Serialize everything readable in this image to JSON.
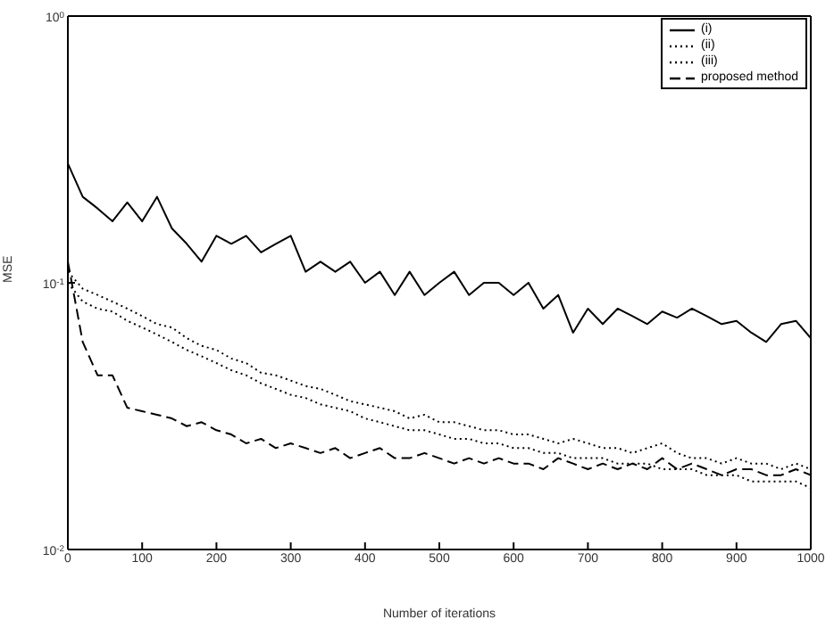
{
  "chart_data": {
    "type": "line",
    "xlabel": "Number of iterations",
    "ylabel": "MSE",
    "log": "y",
    "grid": false,
    "legend": "top right",
    "marker": "none",
    "xlim": [
      0,
      1000
    ],
    "xticks": [
      0,
      100,
      200,
      300,
      400,
      500,
      600,
      700,
      800,
      900,
      1000
    ],
    "ylim": [
      0.01,
      1
    ],
    "yticks": [
      {
        "value": 0.01,
        "label": "10$^{-2}$"
      },
      {
        "value": 0.1,
        "label": "10$^{-1}$"
      },
      {
        "value": 1,
        "label": "10$^{0}$"
      }
    ],
    "x": [
      0,
      20,
      40,
      60,
      80,
      100,
      120,
      140,
      160,
      180,
      200,
      220,
      240,
      260,
      280,
      300,
      320,
      340,
      360,
      380,
      400,
      420,
      440,
      460,
      480,
      500,
      520,
      540,
      560,
      580,
      600,
      620,
      640,
      660,
      680,
      700,
      720,
      740,
      760,
      780,
      800,
      820,
      840,
      860,
      880,
      900,
      920,
      940,
      960,
      980,
      1000
    ],
    "series": [
      {
        "name": "(i)",
        "color": "#000000",
        "line_style": "solid",
        "values": [
          0.28,
          0.21,
          0.19,
          0.17,
          0.2,
          0.17,
          0.21,
          0.16,
          0.14,
          0.12,
          0.15,
          0.14,
          0.15,
          0.13,
          0.14,
          0.15,
          0.11,
          0.12,
          0.11,
          0.12,
          0.1,
          0.11,
          0.09,
          0.11,
          0.09,
          0.1,
          0.11,
          0.09,
          0.1,
          0.1,
          0.09,
          0.1,
          0.08,
          0.09,
          0.065,
          0.08,
          0.07,
          0.08,
          0.075,
          0.07,
          0.078,
          0.074,
          0.08,
          0.075,
          0.07,
          0.072,
          0.065,
          0.06,
          0.07,
          0.072,
          0.062
        ]
      },
      {
        "name": "(ii)",
        "color": "#000000",
        "line_style": "dotted",
        "values": [
          0.11,
          0.095,
          0.09,
          0.085,
          0.08,
          0.075,
          0.07,
          0.068,
          0.062,
          0.058,
          0.056,
          0.052,
          0.05,
          0.046,
          0.045,
          0.043,
          0.041,
          0.04,
          0.038,
          0.036,
          0.035,
          0.034,
          0.033,
          0.031,
          0.032,
          0.03,
          0.03,
          0.029,
          0.028,
          0.028,
          0.027,
          0.027,
          0.026,
          0.025,
          0.026,
          0.025,
          0.024,
          0.024,
          0.023,
          0.024,
          0.025,
          0.023,
          0.022,
          0.022,
          0.021,
          0.022,
          0.021,
          0.021,
          0.02,
          0.021,
          0.02
        ]
      },
      {
        "name": "(iii)",
        "color": "#000000",
        "line_style": "dotted",
        "values": [
          0.1,
          0.085,
          0.08,
          0.078,
          0.072,
          0.068,
          0.064,
          0.06,
          0.056,
          0.053,
          0.05,
          0.047,
          0.045,
          0.042,
          0.04,
          0.038,
          0.037,
          0.035,
          0.034,
          0.033,
          0.031,
          0.03,
          0.029,
          0.028,
          0.028,
          0.027,
          0.026,
          0.026,
          0.025,
          0.025,
          0.024,
          0.024,
          0.023,
          0.023,
          0.022,
          0.022,
          0.022,
          0.021,
          0.021,
          0.021,
          0.02,
          0.02,
          0.02,
          0.019,
          0.019,
          0.019,
          0.018,
          0.018,
          0.018,
          0.018,
          0.017
        ]
      },
      {
        "name": "proposed method",
        "color": "#000000",
        "line_style": "dashed",
        "values": [
          0.12,
          0.06,
          0.045,
          0.045,
          0.034,
          0.033,
          0.032,
          0.031,
          0.029,
          0.03,
          0.028,
          0.027,
          0.025,
          0.026,
          0.024,
          0.025,
          0.024,
          0.023,
          0.024,
          0.022,
          0.023,
          0.024,
          0.022,
          0.022,
          0.023,
          0.022,
          0.021,
          0.022,
          0.021,
          0.022,
          0.021,
          0.021,
          0.02,
          0.022,
          0.021,
          0.02,
          0.021,
          0.02,
          0.021,
          0.02,
          0.022,
          0.02,
          0.021,
          0.02,
          0.019,
          0.02,
          0.02,
          0.019,
          0.019,
          0.02,
          0.019
        ]
      }
    ]
  }
}
